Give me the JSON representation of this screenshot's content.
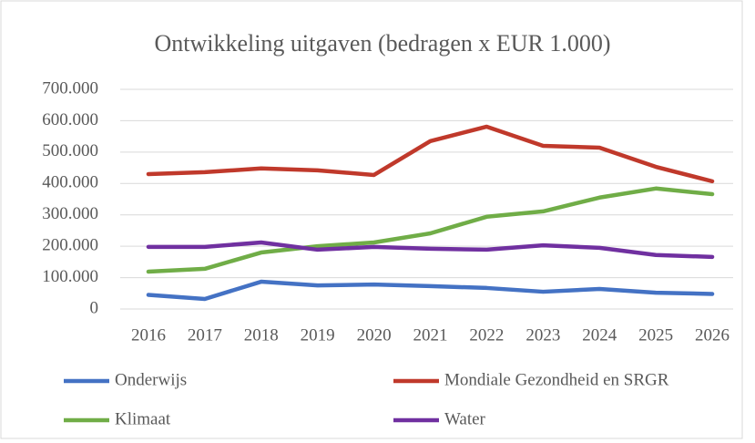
{
  "chart_data": {
    "type": "line",
    "title": "Ontwikkeling uitgaven (bedragen x EUR 1.000)",
    "categories": [
      "2016",
      "2017",
      "2018",
      "2019",
      "2020",
      "2021",
      "2022",
      "2023",
      "2024",
      "2025",
      "2026"
    ],
    "series": [
      {
        "name": "Onderwijs",
        "color": "#4472c4",
        "values": [
          45000,
          32000,
          87000,
          75000,
          78000,
          73000,
          67000,
          55000,
          64000,
          52000,
          48000
        ]
      },
      {
        "name": "Mondiale Gezondheid en SRGR",
        "color": "#c0392b",
        "values": [
          430000,
          436000,
          448000,
          442000,
          427000,
          535000,
          581000,
          520000,
          514000,
          453000,
          407000
        ]
      },
      {
        "name": "Klimaat",
        "color": "#70ad47",
        "values": [
          119000,
          128000,
          180000,
          200000,
          212000,
          241000,
          294000,
          311000,
          355000,
          384000,
          366000
        ]
      },
      {
        "name": "Water",
        "color": "#7030a0",
        "values": [
          198000,
          198000,
          212000,
          189000,
          198000,
          192000,
          189000,
          203000,
          195000,
          172000,
          166000
        ]
      }
    ],
    "ylim": [
      0,
      700000
    ],
    "yticks": [
      0,
      {
        "value": 100000,
        "label": "100.000"
      },
      {
        "value": 200000,
        "label": "200.000"
      },
      {
        "value": 300000,
        "label": "300.000"
      },
      {
        "value": 400000,
        "label": "400.000"
      },
      {
        "value": 500000,
        "label": "500.000"
      },
      {
        "value": 600000,
        "label": "600.000"
      },
      {
        "value": 700000,
        "label": "700.000"
      }
    ],
    "grid": true,
    "legend": "bottom"
  }
}
